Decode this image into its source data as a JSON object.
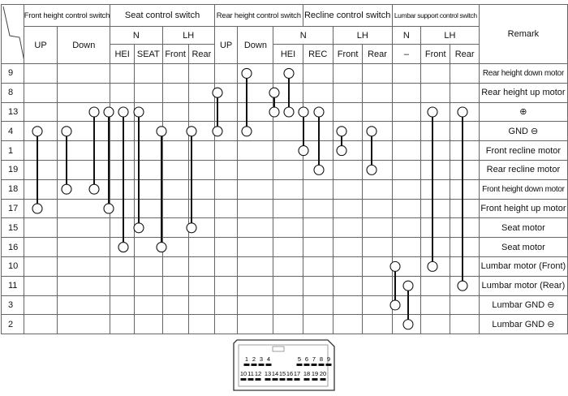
{
  "header": {
    "groups": [
      "Front height control switch",
      "Seat control switch",
      "Rear height control switch",
      "Recline control switch",
      "Lumbar support control switch"
    ],
    "remark": "Remark",
    "sub": {
      "up": "UP",
      "down": "Down",
      "n": "N",
      "lh": "LH",
      "hei": "HEI",
      "seat": "SEAT",
      "rec": "REC",
      "front": "Front",
      "rear": "Rear",
      "dash": "–"
    }
  },
  "rows": [
    {
      "pin": "9",
      "remark": "Rear height down motor"
    },
    {
      "pin": "8",
      "remark": "Rear height up motor"
    },
    {
      "pin": "13",
      "remark": "⊕"
    },
    {
      "pin": "4",
      "remark": "GND ⊖"
    },
    {
      "pin": "1",
      "remark": "Front recline motor"
    },
    {
      "pin": "19",
      "remark": "Rear recline motor"
    },
    {
      "pin": "18",
      "remark": "Front height down motor"
    },
    {
      "pin": "17",
      "remark": "Front height up motor"
    },
    {
      "pin": "15",
      "remark": "Seat motor"
    },
    {
      "pin": "16",
      "remark": "Seat motor"
    },
    {
      "pin": "10",
      "remark": "Lumbar motor (Front)"
    },
    {
      "pin": "11",
      "remark": "Lumbar motor (Rear)"
    },
    {
      "pin": "3",
      "remark": "Lumbar GND ⊖"
    },
    {
      "pin": "2",
      "remark": "Lumbar GND ⊖"
    }
  ],
  "connections": [
    {
      "switch": "Front height UP",
      "pins": [
        "4",
        "17"
      ]
    },
    {
      "switch": "Front height Down",
      "pins": [
        "4",
        "18"
      ]
    },
    {
      "switch": "Seat N HEI a",
      "pins": [
        "13",
        "18"
      ]
    },
    {
      "switch": "Seat N HEI b",
      "pins": [
        "13",
        "17"
      ]
    },
    {
      "switch": "Seat N SEAT a",
      "pins": [
        "13",
        "16"
      ]
    },
    {
      "switch": "Seat N SEAT b",
      "pins": [
        "13",
        "15"
      ]
    },
    {
      "switch": "Seat LH Front",
      "pins": [
        "4",
        "16"
      ]
    },
    {
      "switch": "Seat LH Rear",
      "pins": [
        "4",
        "15"
      ]
    },
    {
      "switch": "Rear height UP",
      "pins": [
        "8",
        "4"
      ]
    },
    {
      "switch": "Rear height Down",
      "pins": [
        "9",
        "4"
      ]
    },
    {
      "switch": "Rear height N HEI a",
      "pins": [
        "8",
        "13"
      ]
    },
    {
      "switch": "Rear height N HEI b",
      "pins": [
        "9",
        "13"
      ]
    },
    {
      "switch": "Recline N REC a",
      "pins": [
        "13",
        "1"
      ]
    },
    {
      "switch": "Recline N REC b",
      "pins": [
        "13",
        "19"
      ]
    },
    {
      "switch": "Recline LH Front",
      "pins": [
        "4",
        "1"
      ]
    },
    {
      "switch": "Recline LH Rear",
      "pins": [
        "4",
        "19"
      ]
    },
    {
      "switch": "Lumbar N a",
      "pins": [
        "10",
        "3"
      ]
    },
    {
      "switch": "Lumbar N b",
      "pins": [
        "11",
        "2"
      ]
    },
    {
      "switch": "Lumbar LH Front",
      "pins": [
        "13",
        "10"
      ]
    },
    {
      "switch": "Lumbar LH Rear",
      "pins": [
        "13",
        "11"
      ]
    }
  ],
  "connector": {
    "top_pins": [
      "1",
      "2",
      "3",
      "4",
      "5",
      "6",
      "7",
      "8",
      "9"
    ],
    "bottom_pins": [
      "10",
      "11",
      "12",
      "13",
      "14",
      "15",
      "16",
      "17",
      "18",
      "19",
      "20"
    ]
  }
}
